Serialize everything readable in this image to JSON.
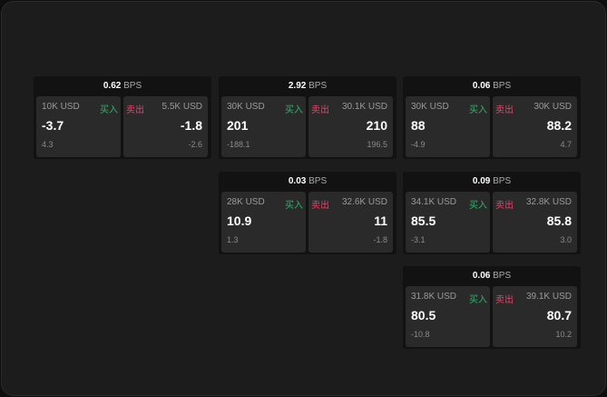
{
  "unit": "BPS",
  "buy_label": "买入",
  "sell_label": "卖出",
  "colors": {
    "buy": "#2fb36a",
    "sell": "#e0466b"
  },
  "widgets": [
    {
      "spread": "0.62",
      "bid": {
        "size": "10K USD",
        "price": "-3.7",
        "change": "4.3"
      },
      "ask": {
        "size": "5.5K USD",
        "price": "-1.8",
        "change": "-2.6"
      }
    },
    {
      "spread": "2.92",
      "bid": {
        "size": "30K USD",
        "price": "201",
        "change": "-188.1"
      },
      "ask": {
        "size": "30.1K USD",
        "price": "210",
        "change": "196.5"
      }
    },
    {
      "spread": "0.06",
      "bid": {
        "size": "30K USD",
        "price": "88",
        "change": "-4.9"
      },
      "ask": {
        "size": "30K USD",
        "price": "88.2",
        "change": "4.7"
      }
    },
    {
      "spread": "0.03",
      "bid": {
        "size": "28K USD",
        "price": "10.9",
        "change": "1.3"
      },
      "ask": {
        "size": "32.6K USD",
        "price": "11",
        "change": "-1.8"
      }
    },
    {
      "spread": "0.09",
      "bid": {
        "size": "34.1K USD",
        "price": "85.5",
        "change": "-3.1"
      },
      "ask": {
        "size": "32.8K USD",
        "price": "85.8",
        "change": "3.0"
      }
    },
    {
      "spread": "0.06",
      "bid": {
        "size": "31.8K USD",
        "price": "80.5",
        "change": "-10.8"
      },
      "ask": {
        "size": "39.1K USD",
        "price": "80.7",
        "change": "10.2"
      }
    }
  ]
}
